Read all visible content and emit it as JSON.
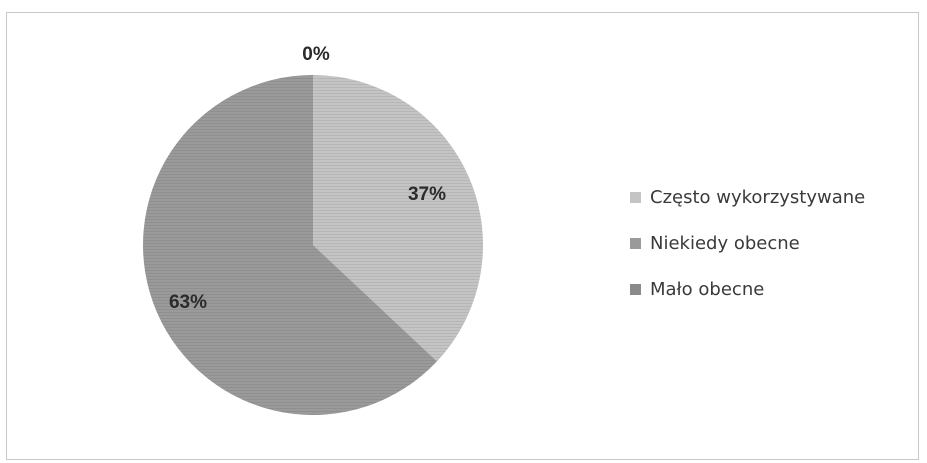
{
  "chart_data": {
    "type": "pie",
    "title": "",
    "categories": [
      "Często wykorzystywane",
      "Niekiedy obecne",
      "Mało obecne"
    ],
    "values": [
      37,
      63,
      0
    ],
    "data_labels": [
      "37%",
      "63%",
      "0%"
    ],
    "colors": [
      "#c4c4c4",
      "#9a9a9a",
      "#8a8a8a"
    ],
    "legend_position": "right"
  }
}
